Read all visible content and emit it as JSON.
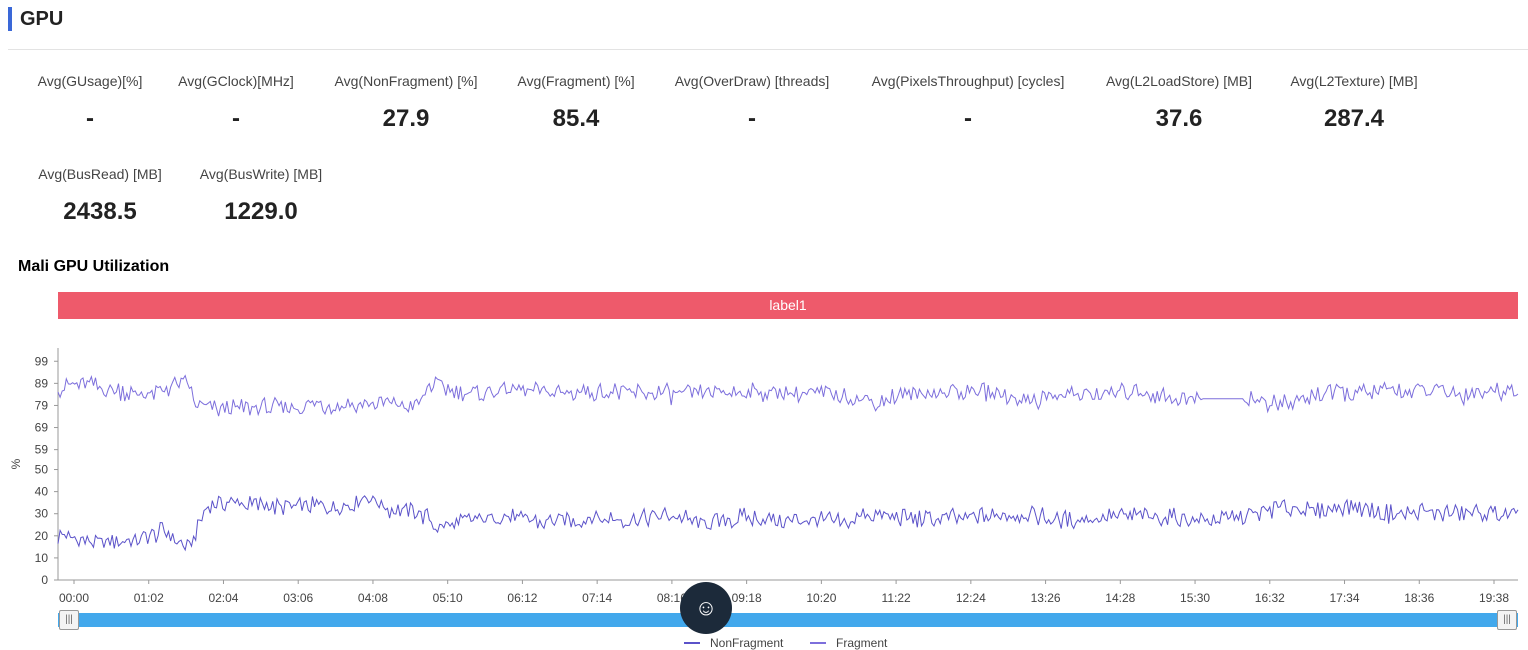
{
  "header": {
    "title": "GPU"
  },
  "stats_row1": [
    {
      "label": "Avg(GUsage)[%]",
      "value": "-"
    },
    {
      "label": "Avg(GClock)[MHz]",
      "value": "-"
    },
    {
      "label": "Avg(NonFragment) [%]",
      "value": "27.9"
    },
    {
      "label": "Avg(Fragment) [%]",
      "value": "85.4"
    },
    {
      "label": "Avg(OverDraw) [threads]",
      "value": "-"
    },
    {
      "label": "Avg(PixelsThroughput) [cycles]",
      "value": "-"
    },
    {
      "label": "Avg(L2LoadStore) [MB]",
      "value": "37.6"
    },
    {
      "label": "Avg(L2Texture) [MB]",
      "value": "287.4"
    }
  ],
  "stats_row2": [
    {
      "label": "Avg(BusRead) [MB]",
      "value": "2438.5"
    },
    {
      "label": "Avg(BusWrite) [MB]",
      "value": "1229.0"
    }
  ],
  "chart": {
    "title": "Mali GPU Utilization",
    "band_label": "label1",
    "slider_left_icon": "|||",
    "slider_right_icon": "|||"
  },
  "chart_data": {
    "type": "line",
    "ylabel": "%",
    "yticks": [
      0,
      10,
      20,
      30,
      40,
      50,
      59,
      69,
      79,
      89,
      99
    ],
    "ylim": [
      0,
      105
    ],
    "xlim_minutes": [
      0,
      20.3
    ],
    "xticks": [
      "00:00",
      "01:02",
      "02:04",
      "03:06",
      "04:08",
      "05:10",
      "06:12",
      "07:14",
      "08:16",
      "09:18",
      "10:20",
      "11:22",
      "12:24",
      "13:26",
      "14:28",
      "15:30",
      "16:32",
      "17:34",
      "18:36",
      "19:38"
    ],
    "legend_position": "bottom",
    "series": [
      {
        "name": "NonFragment",
        "color": "#5b52c9",
        "x": [
          0,
          0.5,
          1,
          1.5,
          1.8,
          2.1,
          2.5,
          3,
          3.5,
          4,
          4.3,
          4.6,
          5,
          5.3,
          5.8,
          6.2,
          6.8,
          7.4,
          8,
          8.5,
          9,
          9.5,
          10,
          10.5,
          11,
          11.2,
          11.6,
          12,
          12.5,
          13,
          13.5,
          14,
          14.5,
          15,
          15.5,
          16,
          16.5,
          17,
          17.5,
          18,
          18.5,
          19,
          19.5,
          20,
          20.3
        ],
        "y": [
          20,
          17,
          18,
          22,
          14,
          34,
          35,
          33,
          34,
          33,
          38,
          32,
          31,
          24,
          27,
          29,
          26,
          28,
          27,
          29,
          25,
          28,
          27,
          28,
          25,
          30,
          29,
          27,
          28,
          29,
          30,
          27,
          28,
          29,
          28,
          27,
          29,
          33,
          31,
          34,
          30,
          31,
          30,
          30,
          29
        ]
      },
      {
        "name": "Fragment",
        "color": "#7d6fdc",
        "x": [
          0,
          0.3,
          0.6,
          1,
          1.3,
          1.6,
          1.8,
          1.9,
          2.2,
          2.6,
          3,
          3.5,
          4,
          4.5,
          5,
          5.2,
          5.4,
          5.8,
          6.2,
          6.8,
          7.4,
          8,
          8.5,
          9,
          9.5,
          10,
          10.5,
          11,
          11.3,
          11.8,
          12.5,
          13,
          13.5,
          14,
          14.5,
          15,
          15.5,
          16,
          16.5,
          17,
          17.5,
          18,
          18.5,
          19,
          19.5,
          20,
          20.3
        ],
        "y": [
          87,
          88,
          87,
          85,
          84,
          88,
          90,
          79,
          77,
          78,
          78,
          79,
          79,
          80,
          79,
          89,
          87,
          84,
          86,
          85,
          85,
          85,
          84,
          85,
          85,
          85,
          85,
          84,
          80,
          84,
          85,
          85,
          81,
          84,
          84,
          86,
          82,
          82,
          82,
          79,
          84,
          85,
          85,
          86,
          84,
          86,
          86
        ]
      }
    ]
  }
}
